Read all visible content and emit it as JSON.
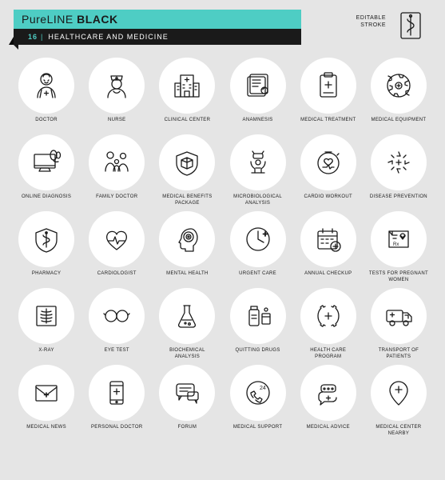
{
  "header": {
    "brand_thin": "Pure",
    "brand_mid": "LINE",
    "brand_bold": "BLACK",
    "set_number": "16",
    "set_title": "HEALTHCARE AND MEDICINE",
    "editable_line1": "EDITABLE",
    "editable_line2": "STROKE"
  },
  "styling": {
    "background": "#e5e5e5",
    "circle_bg": "#ffffff",
    "teal": "#4ecdc4",
    "black": "#1a1a1a",
    "stroke_width": 1.3,
    "icon_size": 42,
    "circle_diameter": 70,
    "grid_cols": 6,
    "grid_rows": 5,
    "label_fontsize": 6
  },
  "icons": [
    {
      "name": "doctor-icon",
      "label": "DOCTOR"
    },
    {
      "name": "nurse-icon",
      "label": "NURSE"
    },
    {
      "name": "clinical-center-icon",
      "label": "CLINICAL CENTER"
    },
    {
      "name": "anamnesis-icon",
      "label": "ANAMNESIS"
    },
    {
      "name": "medical-treatment-icon",
      "label": "MEDICAL TREATMENT"
    },
    {
      "name": "medical-equipment-icon",
      "label": "MEDICAL EQUIPMENT"
    },
    {
      "name": "online-diagnosis-icon",
      "label": "ONLINE DIAGNOSIS"
    },
    {
      "name": "family-doctor-icon",
      "label": "FAMILY DOCTOR"
    },
    {
      "name": "medical-benefits-icon",
      "label": "MEDICAL BENEFITS PACKAGE"
    },
    {
      "name": "microbiological-icon",
      "label": "MICROBIOLOGICAL ANALYSIS"
    },
    {
      "name": "cardio-workout-icon",
      "label": "CARDIO WORKOUT"
    },
    {
      "name": "disease-prevention-icon",
      "label": "DISEASE PREVENTION"
    },
    {
      "name": "pharmacy-icon",
      "label": "PHARMACY"
    },
    {
      "name": "cardiologist-icon",
      "label": "CARDIOLOGIST"
    },
    {
      "name": "mental-health-icon",
      "label": "MENTAL HEALTH"
    },
    {
      "name": "urgent-care-icon",
      "label": "URGENT CARE"
    },
    {
      "name": "annual-checkup-icon",
      "label": "ANNUAL CHECKUP"
    },
    {
      "name": "pregnant-tests-icon",
      "label": "TESTS FOR PREGNANT WOMEN"
    },
    {
      "name": "xray-icon",
      "label": "X-RAY"
    },
    {
      "name": "eye-test-icon",
      "label": "EYE TEST"
    },
    {
      "name": "biochemical-icon",
      "label": "BIOCHEMICAL ANALYSIS"
    },
    {
      "name": "quitting-drugs-icon",
      "label": "QUITTING DRUGS"
    },
    {
      "name": "healthcare-program-icon",
      "label": "HEALTH CARE PROGRAM"
    },
    {
      "name": "transport-icon",
      "label": "TRANSPORT OF PATIENTS"
    },
    {
      "name": "medical-news-icon",
      "label": "MEDICAL NEWS"
    },
    {
      "name": "personal-doctor-icon",
      "label": "PERSONAL DOCTOR"
    },
    {
      "name": "forum-icon",
      "label": "FORUM"
    },
    {
      "name": "medical-support-icon",
      "label": "MEDICAL SUPPORT"
    },
    {
      "name": "medical-advice-icon",
      "label": "MEDICAL ADVICE"
    },
    {
      "name": "medical-center-icon",
      "label": "MEDICAL CENTER NEARBY"
    }
  ]
}
